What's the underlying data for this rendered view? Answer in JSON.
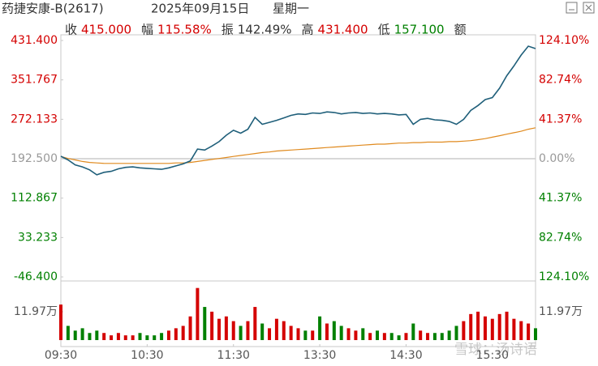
{
  "header": {
    "title": "药捷安康-B(2617)",
    "date": "2025年09月15日",
    "weekday": "星期一",
    "stats": [
      {
        "label": "收",
        "value": "415.000",
        "color": "#d40000"
      },
      {
        "label": "幅",
        "value": "115.58%",
        "color": "#d40000"
      },
      {
        "label": "振",
        "value": "142.49%",
        "color": "#333333"
      },
      {
        "label": "高",
        "value": "431.400",
        "color": "#d40000"
      },
      {
        "label": "低",
        "value": "157.100",
        "color": "#008000"
      },
      {
        "label": "额"
      }
    ]
  },
  "watermark": "雪球：汤诗语",
  "chart_data": {
    "type": "line",
    "x": [
      0,
      5,
      10,
      15,
      20,
      25,
      30,
      35,
      40,
      45,
      50,
      55,
      60,
      65,
      70,
      75,
      80,
      85,
      90,
      95,
      100,
      105,
      110,
      115,
      120,
      125,
      130,
      135,
      140,
      145,
      150,
      155,
      160,
      165,
      170,
      175,
      180,
      185,
      190,
      195,
      200,
      205,
      210,
      215,
      220,
      225,
      230,
      235,
      240,
      245,
      250,
      255,
      260,
      265,
      270,
      275,
      280,
      285,
      290,
      295,
      300,
      305,
      310,
      315,
      320,
      325,
      330
    ],
    "xlim": [
      0,
      330
    ],
    "xticks": [
      {
        "value": 0,
        "label": "09:30"
      },
      {
        "value": 60,
        "label": "10:30"
      },
      {
        "value": 120,
        "label": "11:30"
      },
      {
        "value": 180,
        "label": "13:30"
      },
      {
        "value": 240,
        "label": "14:30"
      },
      {
        "value": 300,
        "label": "15:30"
      }
    ],
    "ylim": [
      -46.4,
      431.4
    ],
    "yticks": [
      {
        "value": 431.4,
        "label": "431.400"
      },
      351.767,
      272.133,
      {
        "value": 192.5,
        "label": "192.500"
      },
      112.867,
      33.233,
      {
        "value": -46.4,
        "label": "-46.400"
      }
    ],
    "y2lim": [
      -124.1,
      124.1
    ],
    "y2ticks": [
      {
        "value": 124.1,
        "label": "124.10%"
      },
      {
        "value": 82.74,
        "label": "82.74%"
      },
      {
        "value": 41.37,
        "label": "41.37%"
      },
      {
        "value": 0,
        "label": "0.00%"
      },
      {
        "value": -41.37,
        "label": "41.37%"
      },
      {
        "value": -82.74,
        "label": "82.74%"
      },
      {
        "value": -124.1,
        "label": "124.10%"
      }
    ],
    "series": [
      {
        "color": "#1f5f7a",
        "values": [
          197.4,
          190,
          180,
          176,
          170,
          160,
          165,
          167,
          172,
          175,
          176,
          174,
          173,
          172,
          171,
          174,
          178,
          182,
          188,
          212,
          210,
          218,
          227,
          240,
          250,
          244,
          252,
          276,
          262,
          266,
          270,
          275,
          280,
          283,
          282,
          285,
          284,
          287,
          286,
          283,
          285,
          286,
          284,
          285,
          283,
          284,
          283,
          281,
          282,
          262,
          272,
          274,
          271,
          270,
          268,
          262,
          272,
          290,
          300,
          312,
          316,
          335,
          360,
          380,
          402,
          420,
          415
        ]
      },
      {
        "color": "#e08a1e",
        "values": [
          197,
          193,
          190,
          187,
          185,
          184,
          183,
          183,
          183,
          183,
          183,
          183,
          183,
          183,
          183,
          183,
          184,
          184,
          185,
          187,
          189,
          191,
          193,
          195,
          197,
          199,
          201,
          203,
          205,
          206,
          208,
          209,
          210,
          211,
          212,
          213,
          214,
          215,
          216,
          217,
          218,
          219,
          220,
          221,
          222,
          222,
          223,
          224,
          224,
          225,
          225,
          226,
          226,
          226,
          227,
          227,
          228,
          229,
          231,
          233,
          236,
          239,
          242,
          245,
          248,
          252,
          255
        ]
      }
    ],
    "volume": {
      "values": [
        15,
        6,
        4,
        5,
        3,
        4,
        3,
        2,
        3,
        2,
        2,
        3,
        2,
        2,
        3,
        4,
        5,
        6,
        10,
        22,
        14,
        12,
        9,
        10,
        8,
        6,
        8,
        14,
        7,
        5,
        9,
        8,
        6,
        5,
        4,
        4,
        10,
        7,
        8,
        6,
        5,
        4,
        5,
        3,
        4,
        3,
        3,
        2,
        3,
        7,
        4,
        3,
        3,
        3,
        4,
        6,
        8,
        11,
        12,
        10,
        9,
        11,
        12,
        9,
        8,
        7,
        5
      ],
      "ylim": [
        0,
        23.94
      ],
      "yticks": [
        {
          "value": 11.97,
          "label": "11.97万"
        }
      ],
      "up_color": "#d40000",
      "down_color": "#008000"
    }
  }
}
